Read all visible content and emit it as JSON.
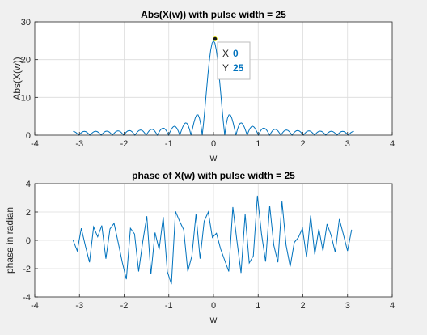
{
  "chart_data": [
    {
      "type": "line",
      "title": "Abs(X(w)) with pulse width = 25",
      "xlabel": "w",
      "ylabel": "Abs(X(w))",
      "xlim": [
        -4,
        4
      ],
      "ylim": [
        0,
        30
      ],
      "xticks": [
        -4,
        -3,
        -2,
        -1,
        0,
        1,
        2,
        3,
        4
      ],
      "yticks": [
        0,
        10,
        20,
        30
      ],
      "grid": true,
      "series_color": "#0072bd",
      "pulse_width": 25,
      "x_range": [
        -3.1416,
        3.1416
      ],
      "sample_count": 200,
      "datatip": {
        "x_label": "X",
        "x_value": "0",
        "y_label": "Y",
        "y_value": "25"
      }
    },
    {
      "type": "line",
      "title": "phase of X(w) with pulse width = 25",
      "xlabel": "w",
      "ylabel": "phase in radian",
      "xlim": [
        -4,
        4
      ],
      "ylim": [
        -4,
        4
      ],
      "xticks": [
        -4,
        -3,
        -2,
        -1,
        0,
        1,
        2,
        3,
        4
      ],
      "yticks": [
        -4,
        -2,
        0,
        2,
        4
      ],
      "grid": true,
      "series_color": "#0072bd",
      "x": [
        -3.1416,
        -3.0499,
        -2.9583,
        -2.8666,
        -2.775,
        -2.6833,
        -2.5916,
        -2.5,
        -2.4083,
        -2.3167,
        -2.225,
        -2.1333,
        -2.0417,
        -1.95,
        -1.8584,
        -1.7667,
        -1.675,
        -1.5834,
        -1.4917,
        -1.4001,
        -1.3084,
        -1.2167,
        -1.1251,
        -1.0334,
        -0.9418,
        -0.8501,
        -0.7584,
        -0.6668,
        -0.5751,
        -0.4835,
        -0.3918,
        -0.3001,
        -0.2085,
        -0.1168,
        -0.0252,
        0.0665,
        0.1582,
        0.2498,
        0.3415,
        0.4331,
        0.5248,
        0.6165,
        0.7081,
        0.7998,
        0.8914,
        0.9831,
        1.0748,
        1.1664,
        1.2581,
        1.3497,
        1.4414,
        1.5331,
        1.6247,
        1.7164,
        1.808,
        1.8997,
        1.9914,
        2.083,
        2.1747,
        2.2663,
        2.358,
        2.4497,
        2.5413,
        2.633,
        2.7246,
        2.8163,
        2.908,
        2.9996,
        3.0913
      ],
      "y": [
        0,
        -0.75,
        0.85,
        -0.4,
        -1.55,
        0.95,
        0.25,
        1.05,
        -1.3,
        0.8,
        1.2,
        -0.15,
        -1.55,
        -2.75,
        0.85,
        0.45,
        -2.2,
        -0.1,
        1.7,
        -2.4,
        0.55,
        -0.65,
        1.65,
        -2.2,
        -3.1,
        2.05,
        1.35,
        0.75,
        -2.2,
        -1.1,
        1.85,
        -1.3,
        1.35,
        2.0,
        0.2,
        0.5,
        -0.6,
        -1.4,
        -2.2,
        2.35,
        -0.05,
        -2.3,
        1.85,
        -1.6,
        -1.1,
        3.15,
        0.45,
        -1.5,
        2.45,
        -0.35,
        -1.55,
        2.75,
        -0.35,
        -1.85,
        -0.15,
        0.2,
        0.85,
        -1.2,
        1.75,
        -1.0,
        0.8,
        -0.75,
        1.15,
        0.35,
        -0.85,
        1.5,
        0.4,
        -0.75,
        0.75
      ]
    }
  ]
}
